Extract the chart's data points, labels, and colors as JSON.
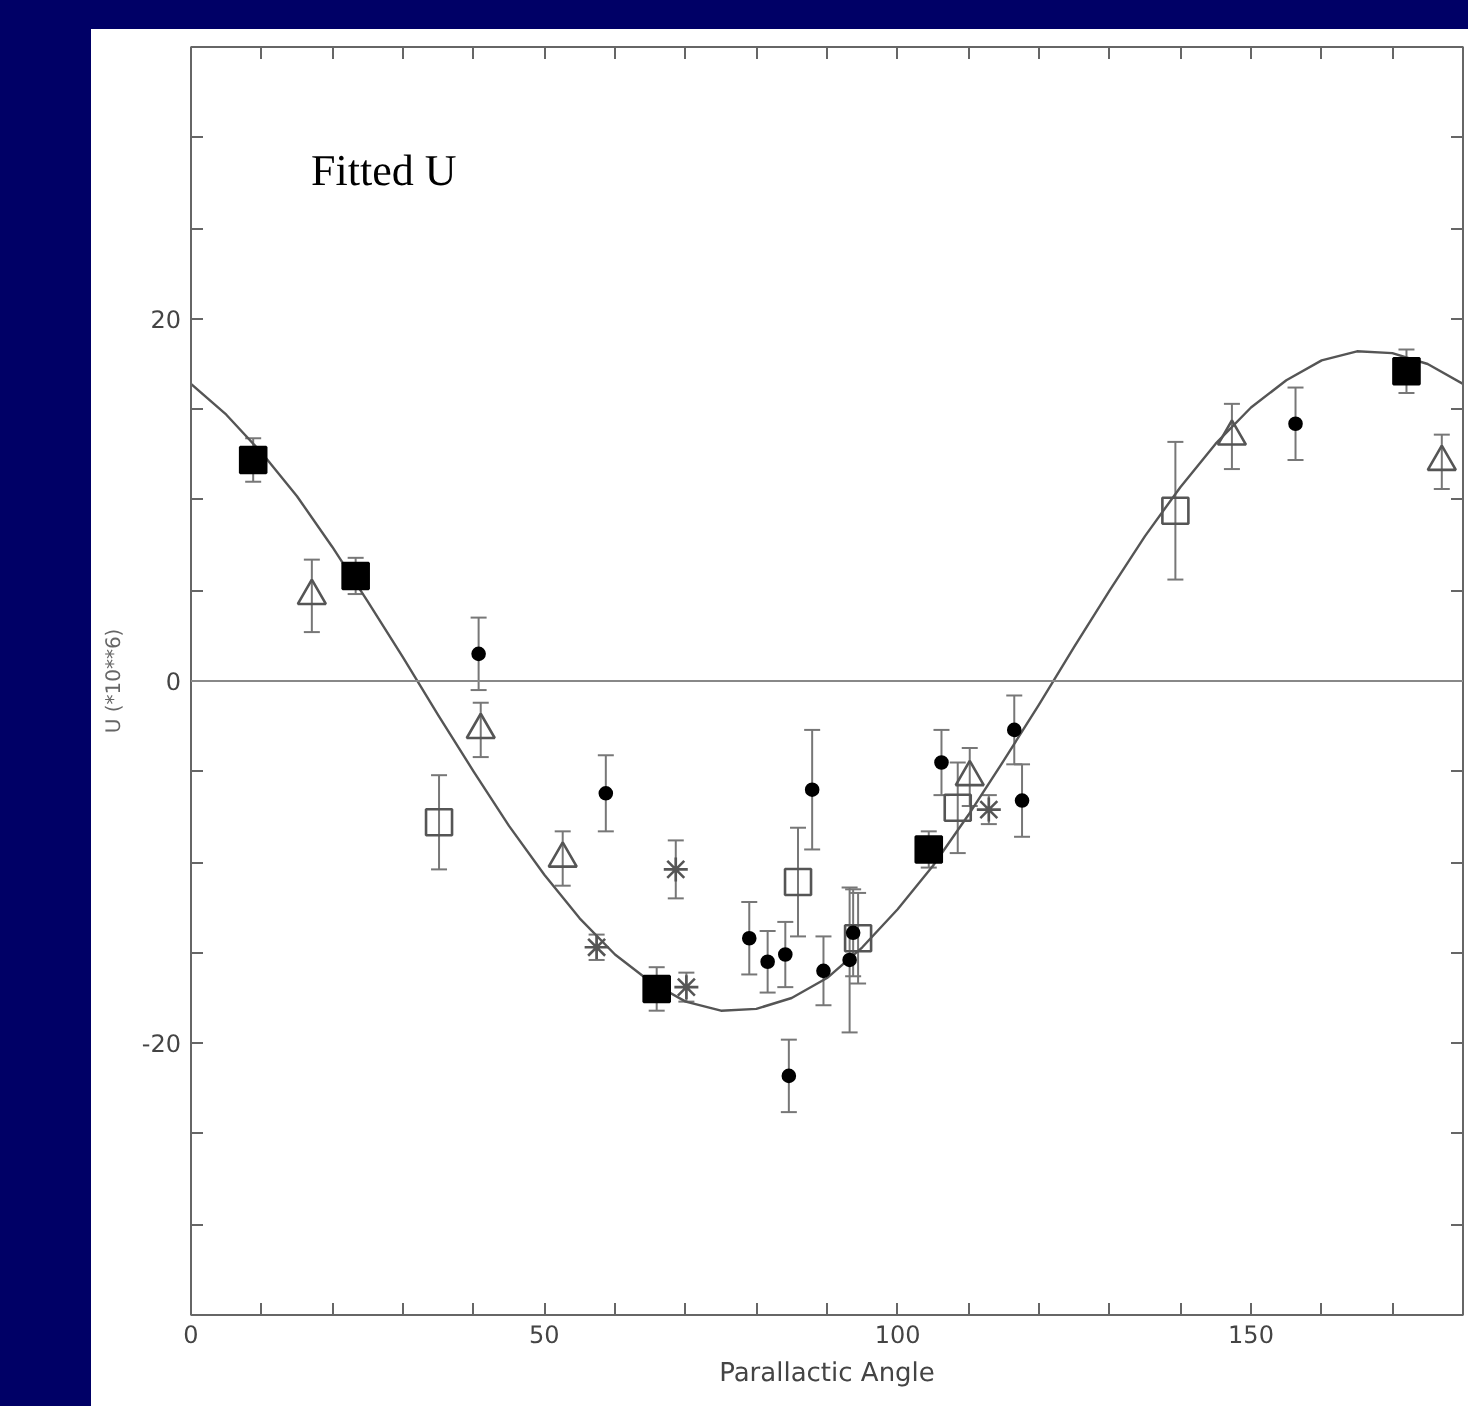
{
  "chart_data": {
    "type": "scatter",
    "title": "Fitted U",
    "xlabel": "Parallactic Angle",
    "ylabel": "U (*10**6)",
    "xlim": [
      0,
      180
    ],
    "ylim": [
      -35,
      35
    ],
    "xticks": [
      0,
      {
        "value": 10,
        "label": null
      },
      {
        "value": 20,
        "label": null
      },
      {
        "value": 30,
        "label": null
      },
      {
        "value": 40,
        "label": null
      },
      50,
      {
        "value": 60,
        "label": null
      },
      {
        "value": 70,
        "label": null
      },
      {
        "value": 80,
        "label": null
      },
      {
        "value": 90,
        "label": null
      },
      100,
      {
        "value": 110,
        "label": null
      },
      {
        "value": 120,
        "label": null
      },
      {
        "value": 130,
        "label": null
      },
      {
        "value": 140,
        "label": null
      },
      150,
      {
        "value": 160,
        "label": null
      },
      {
        "value": 170,
        "label": null
      },
      {
        "value": 180,
        "label": null
      }
    ],
    "yticks": [
      {
        "value": -35,
        "label": null
      },
      {
        "value": -30,
        "label": null
      },
      {
        "value": -25,
        "label": null
      },
      -20,
      {
        "value": -15,
        "label": null
      },
      {
        "value": -10,
        "label": null
      },
      {
        "value": -5,
        "label": null
      },
      0,
      {
        "value": 5,
        "label": null
      },
      {
        "value": 10,
        "label": null
      },
      {
        "value": 15,
        "label": null
      },
      20,
      {
        "value": 25,
        "label": null
      },
      {
        "value": 30,
        "label": null
      },
      {
        "value": 35,
        "label": null
      }
    ],
    "grid": false,
    "ref_lines": [
      {
        "axis": "y",
        "value": 0,
        "label": null,
        "color": "#888888"
      }
    ],
    "series": [
      {
        "type": "line",
        "color": "#555555",
        "marker": "none",
        "x": [
          0,
          5,
          10,
          15,
          20,
          25,
          30,
          35,
          40,
          45,
          50,
          55,
          60,
          65,
          70,
          75,
          80,
          85,
          90,
          95,
          100,
          105,
          110,
          115,
          120,
          125,
          130,
          135,
          140,
          145,
          150,
          155,
          160,
          165,
          170,
          175,
          180
        ],
        "values": [
          16.4,
          14.7,
          12.6,
          10.2,
          7.4,
          4.4,
          1.3,
          -1.9,
          -5.0,
          -8.0,
          -10.7,
          -13.1,
          -15.1,
          -16.6,
          -17.7,
          -18.2,
          -18.1,
          -17.5,
          -16.4,
          -14.7,
          -12.6,
          -10.2,
          -7.4,
          -4.4,
          -1.3,
          1.9,
          5.0,
          8.0,
          10.7,
          13.1,
          15.1,
          16.6,
          17.7,
          18.2,
          18.1,
          17.5,
          16.4
        ]
      },
      {
        "color": "#000000",
        "marker": "square",
        "x": [
          8.8,
          23.3,
          65.9,
          104.4,
          172
        ],
        "values": [
          12.2,
          5.8,
          -17.0,
          -9.3,
          17.1
        ],
        "errors": [
          1.2,
          1.0,
          1.2,
          1.0,
          1.2
        ]
      },
      {
        "color": "#555555",
        "marker": "triangle",
        "x": [
          17.1,
          41.0,
          52.6,
          110.2,
          147.3,
          177
        ],
        "values": [
          4.7,
          -2.7,
          -9.8,
          -5.3,
          13.5,
          12.1
        ],
        "errors": [
          2.0,
          1.5,
          1.5,
          1.6,
          1.8,
          1.5
        ]
      },
      {
        "color": "#555555",
        "marker": "square",
        "x": [
          35.1,
          85.9,
          94.4,
          108.5,
          139.3
        ],
        "values": [
          -7.8,
          -11.1,
          -14.2,
          -7.0,
          9.4
        ],
        "errors": [
          2.6,
          3.0,
          2.5,
          2.5,
          3.8
        ]
      },
      {
        "color": "#555555",
        "marker": "cross",
        "x": [
          57.4,
          68.6,
          70.1,
          112.9
        ],
        "values": [
          -14.7,
          -10.4,
          -16.9,
          -7.1
        ],
        "errors": [
          0.7,
          1.6,
          0.8,
          0.8
        ]
      },
      {
        "color": "#000000",
        "marker": "circle",
        "x": [
          40.7,
          58.7,
          79.0,
          81.6,
          84.1,
          84.6,
          87.9,
          89.5,
          93.2,
          93.7,
          106.2,
          116.5,
          117.6,
          156.3
        ],
        "values": [
          1.5,
          -6.2,
          -14.2,
          -15.5,
          -15.1,
          -21.8,
          -6.0,
          -16.0,
          -15.4,
          -13.9,
          -4.5,
          -2.7,
          -6.6,
          14.2
        ],
        "errors": [
          2.0,
          2.1,
          2.0,
          1.7,
          1.8,
          2.0,
          3.3,
          1.9,
          4.0,
          2.4,
          1.8,
          1.9,
          2.0,
          2.0
        ]
      }
    ]
  }
}
